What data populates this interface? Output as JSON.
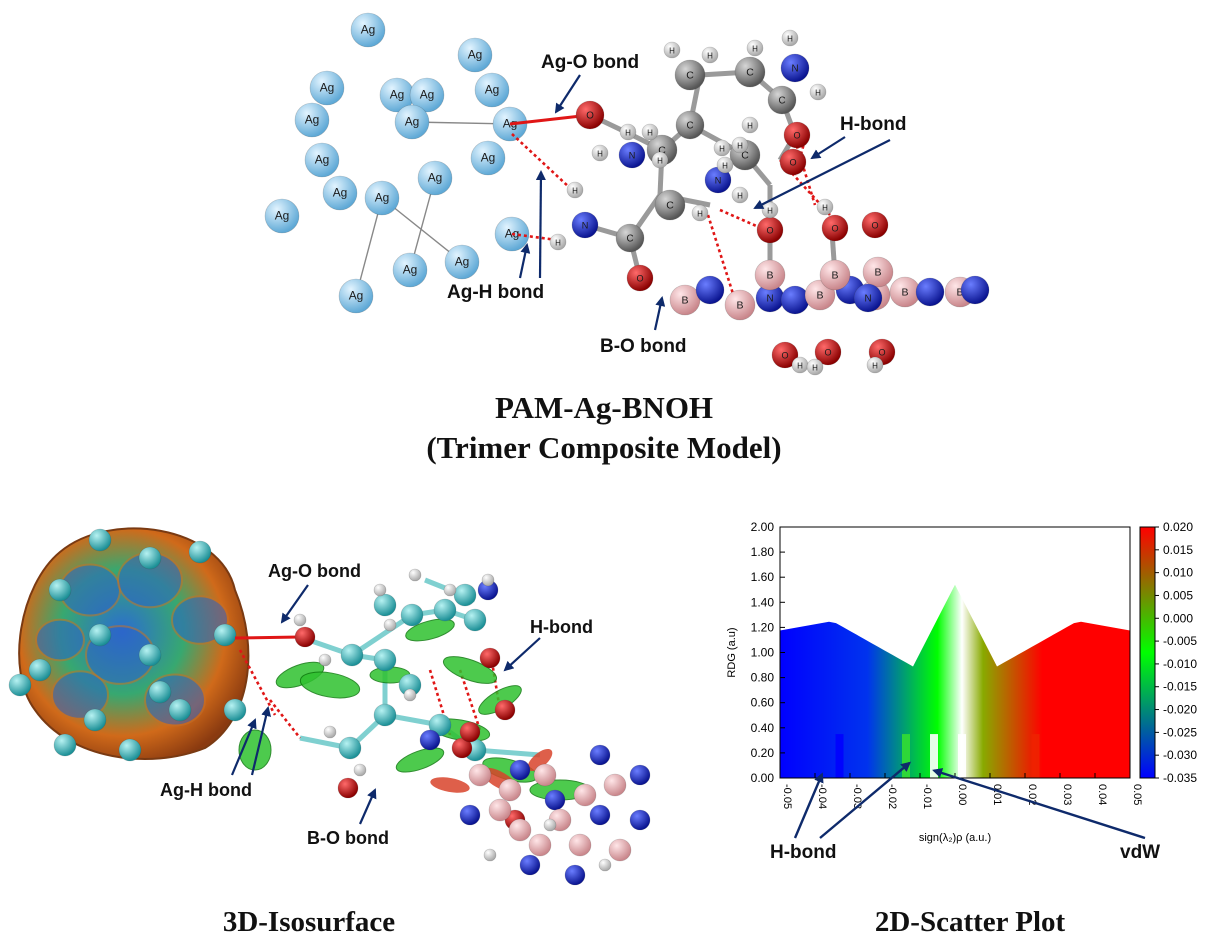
{
  "top_panel": {
    "title_line1": "PAM-Ag-BNOH",
    "title_line2": "(Trimer Composite Model)",
    "labels": {
      "ag_o": "Ag-O bond",
      "h_bond": "H-bond",
      "ag_h": "Ag-H bond",
      "b_o": "B-O bond"
    },
    "atom_symbols": {
      "ag": "Ag",
      "o": "O",
      "n": "N",
      "c": "C",
      "h": "H",
      "b": "B"
    }
  },
  "bottom_left": {
    "caption": "3D-Isosurface",
    "labels": {
      "ag_o": "Ag-O bond",
      "h_bond": "H-bond",
      "ag_h": "Ag-H bond",
      "b_o": "B-O bond"
    }
  },
  "bottom_right": {
    "caption": "2D-Scatter Plot",
    "annot_hbond": "H-bond",
    "annot_vdw": "vdW"
  },
  "colors": {
    "ag": "#9dd3ef",
    "oxygen": "#d21414",
    "nitrogen": "#1c2fd6",
    "carbon": "#8c8c8c",
    "hydrogen": "#e6e6e6",
    "boron": "#f0b2b6",
    "bond_red": "#e01616",
    "arrow": "#0e2a6b"
  },
  "chart_data": {
    "type": "scatter",
    "xlabel": "sign(λ₂)ρ (a.u.)",
    "ylabel": "RDG (a.u)",
    "xlim": [
      -0.05,
      0.05
    ],
    "ylim": [
      0.0,
      2.0
    ],
    "x_ticks": [
      "-0.05",
      "-0.04",
      "-0.03",
      "-0.02",
      "-0.01",
      "0.00",
      "0.01",
      "0.02",
      "0.03",
      "0.04",
      "0.05"
    ],
    "y_ticks": [
      "0.00",
      "0.20",
      "0.40",
      "0.60",
      "0.80",
      "1.00",
      "1.20",
      "1.40",
      "1.60",
      "1.80",
      "2.00"
    ],
    "colorbar": {
      "range": [
        -0.035,
        0.02
      ],
      "ticks": [
        "0.020",
        "0.015",
        "0.010",
        "0.005",
        "0.000",
        "-0.005",
        "-0.010",
        "-0.015",
        "-0.020",
        "-0.025",
        "-0.030",
        "-0.035"
      ],
      "colors": [
        "#ff0000",
        "#00ff00",
        "#0000ff"
      ]
    },
    "grid": false,
    "spikes": [
      -0.033,
      -0.014,
      -0.006,
      0.002,
      0.023
    ]
  }
}
